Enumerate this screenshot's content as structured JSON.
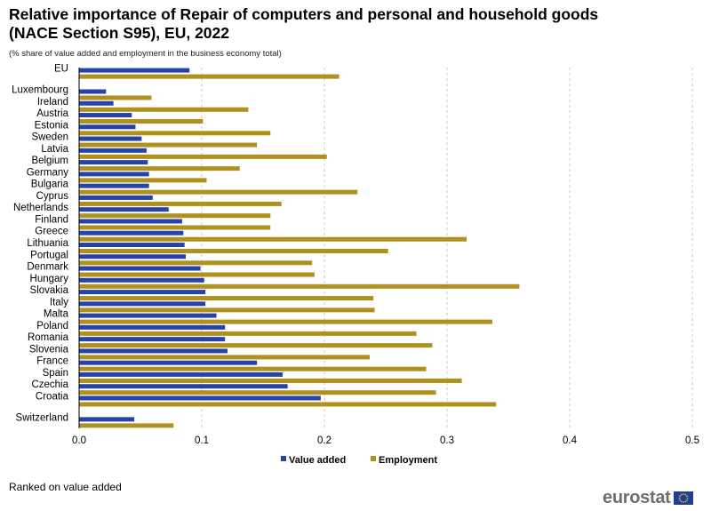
{
  "title": "Relative importance of Repair of computers and personal and household goods (NACE Section S95), EU, 2022",
  "subtitle": "(% share of value added and employment in the business economy total)",
  "note": "Ranked on value added",
  "logo": {
    "text": "eurostat",
    "icon": "eu-flag-icon"
  },
  "colors": {
    "value_added": "#2644a7",
    "employment": "#b09120",
    "grid": "#c8c8c8"
  },
  "chart_data": {
    "type": "bar",
    "orientation": "horizontal",
    "title": "Relative importance of Repair of computers and personal and household goods (NACE Section S95), EU, 2022",
    "xlabel": "",
    "ylabel": "",
    "xlim": [
      0,
      0.5
    ],
    "xticks": [
      0,
      0.1,
      0.2,
      0.3,
      0.4,
      0.5
    ],
    "xtick_labels": [
      "0.0",
      "0.1",
      "0.2",
      "0.3",
      "0.4",
      "0.5"
    ],
    "grid": true,
    "legend": "bottom-center",
    "categories": [
      "EU",
      "Luxembourg",
      "Ireland",
      "Austria",
      "Estonia",
      "Sweden",
      "Latvia",
      "Belgium",
      "Germany",
      "Bulgaria",
      "Cyprus",
      "Netherlands",
      "Finland",
      "Greece",
      "Lithuania",
      "Portugal",
      "Denmark",
      "Hungary",
      "Slovakia",
      "Italy",
      "Malta",
      "Poland",
      "Romania",
      "Slovenia",
      "France",
      "Spain",
      "Czechia",
      "Croatia",
      "Switzerland"
    ],
    "groups_after": [
      0,
      27
    ],
    "series": [
      {
        "name": "Value added",
        "values": [
          0.09,
          0.022,
          0.028,
          0.043,
          0.046,
          0.051,
          0.055,
          0.056,
          0.057,
          0.057,
          0.06,
          0.073,
          0.084,
          0.085,
          0.086,
          0.087,
          0.099,
          0.102,
          0.103,
          0.103,
          0.112,
          0.119,
          0.119,
          0.121,
          0.145,
          0.166,
          0.17,
          0.197,
          0.045
        ]
      },
      {
        "name": "Employment",
        "values": [
          0.212,
          0.059,
          0.138,
          0.101,
          0.156,
          0.145,
          0.202,
          0.131,
          0.104,
          0.227,
          0.165,
          0.156,
          0.156,
          0.316,
          0.252,
          0.19,
          0.192,
          0.359,
          0.24,
          0.241,
          0.337,
          0.275,
          0.288,
          0.237,
          0.283,
          0.312,
          0.291,
          0.34,
          0.077
        ]
      }
    ]
  }
}
